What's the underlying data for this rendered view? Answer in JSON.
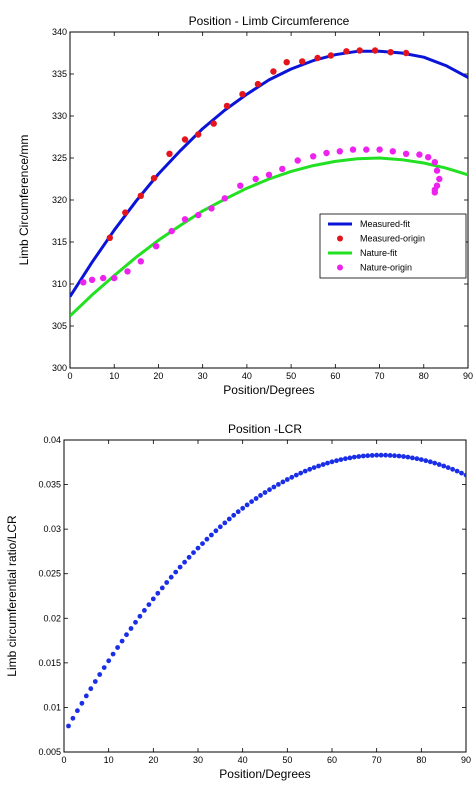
{
  "chart_data": [
    {
      "type": "scatter",
      "title": "Position - Limb Circumference",
      "xlabel": "Position/Degrees",
      "ylabel": "Limb Circumference/mm",
      "xlim": [
        0,
        90
      ],
      "ylim": [
        300,
        340
      ],
      "xticks": [
        0,
        10,
        20,
        30,
        40,
        50,
        60,
        70,
        80,
        90
      ],
      "yticks": [
        300,
        305,
        310,
        315,
        320,
        325,
        330,
        335,
        340
      ],
      "grid": false,
      "legend_position": "right",
      "series": [
        {
          "name": "Measured-fit",
          "kind": "line",
          "color": "#0a14d8",
          "x": [
            0,
            5,
            10,
            15,
            20,
            25,
            30,
            35,
            40,
            45,
            50,
            55,
            60,
            65,
            70,
            75,
            80,
            85,
            90
          ],
          "y": [
            308.5,
            312.6,
            316.4,
            319.9,
            323.1,
            325.9,
            328.5,
            330.7,
            332.6,
            334.3,
            335.6,
            336.6,
            337.3,
            337.7,
            337.7,
            337.5,
            337.0,
            336.0,
            334.6
          ]
        },
        {
          "name": "Measured-origin",
          "kind": "points",
          "color": "#e3141e",
          "x": [
            9,
            12.5,
            16,
            19,
            22.5,
            26,
            29,
            32.5,
            35.5,
            39,
            42.5,
            46,
            49,
            52.5,
            56,
            59,
            62.5,
            65.5,
            69,
            72.5,
            76
          ],
          "y": [
            315.5,
            318.5,
            320.5,
            322.6,
            325.5,
            327.2,
            327.8,
            329.1,
            331.2,
            332.6,
            333.8,
            335.3,
            336.4,
            336.5,
            336.9,
            337.2,
            337.7,
            337.8,
            337.8,
            337.6,
            337.5
          ]
        },
        {
          "name": "Nature-fit",
          "kind": "line",
          "color": "#22e022",
          "x": [
            0,
            5,
            10,
            15,
            20,
            25,
            30,
            35,
            40,
            45,
            50,
            55,
            60,
            65,
            70,
            75,
            80,
            85,
            90
          ],
          "y": [
            306.2,
            308.7,
            311.0,
            313.2,
            315.2,
            317.0,
            318.7,
            320.1,
            321.4,
            322.5,
            323.4,
            324.1,
            324.6,
            324.9,
            325.0,
            324.8,
            324.4,
            323.8,
            323.0
          ]
        },
        {
          "name": "Nature-origin",
          "kind": "points",
          "color": "#ee22ee",
          "x": [
            3,
            5,
            7.5,
            10,
            13,
            16,
            19.5,
            23,
            26,
            29,
            32,
            35,
            38.5,
            42,
            45,
            48,
            51.5,
            55,
            58,
            61,
            64,
            67,
            70,
            73,
            76,
            79,
            81,
            82.5,
            83,
            83.5,
            83,
            82.5,
            82.5
          ],
          "y": [
            310.2,
            310.5,
            310.7,
            310.7,
            311.5,
            312.7,
            314.5,
            316.3,
            317.7,
            318.2,
            319.0,
            320.2,
            321.7,
            322.5,
            323.0,
            323.7,
            324.7,
            325.2,
            325.6,
            325.8,
            326.0,
            326.0,
            326.0,
            325.8,
            325.5,
            325.4,
            325.1,
            324.5,
            323.5,
            322.5,
            321.7,
            321.2,
            320.9
          ]
        }
      ]
    },
    {
      "type": "scatter",
      "title": "Position -LCR",
      "xlabel": "Position/Degrees",
      "ylabel": "Limb circumferential ratio/LCR",
      "xlim": [
        0,
        90
      ],
      "ylim": [
        0.005,
        0.04
      ],
      "xticks": [
        0,
        10,
        20,
        30,
        40,
        50,
        60,
        70,
        80,
        90
      ],
      "yticks": [
        0.005,
        0.01,
        0.015,
        0.02,
        0.025,
        0.03,
        0.035,
        0.04
      ],
      "grid": false,
      "series": [
        {
          "kind": "points",
          "color": "#1a2ee8",
          "curve": {
            "vertex_x": 71,
            "vertex_y": 0.0383,
            "a": 6.2e-06
          },
          "x_start": 1,
          "x_end": 90,
          "x_step": 1
        }
      ]
    }
  ]
}
